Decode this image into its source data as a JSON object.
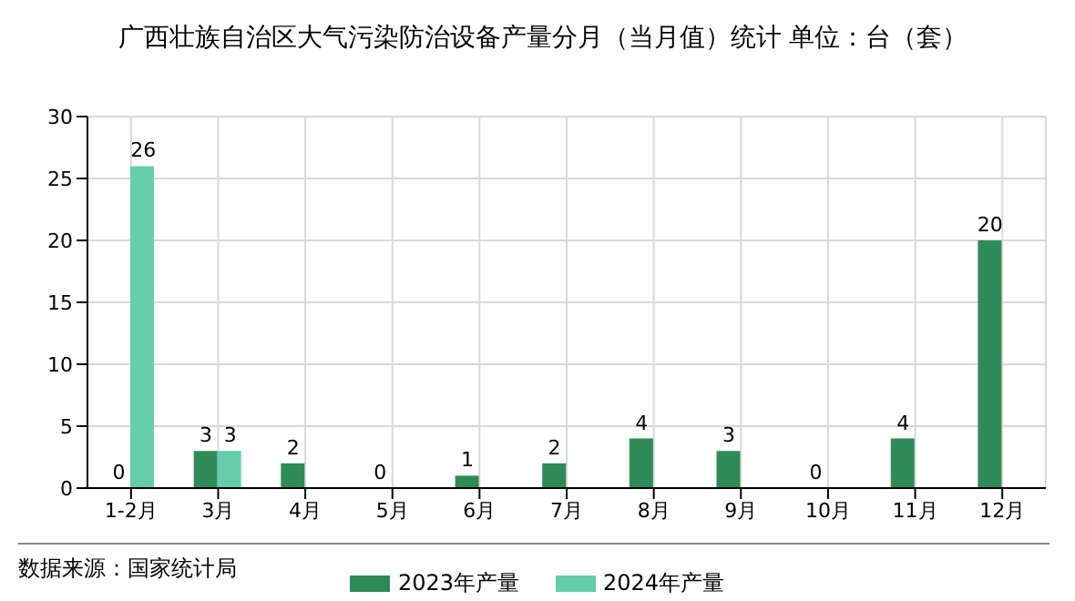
{
  "chart_data": {
    "type": "bar",
    "title": "广西壮族自治区大气污染防治设备产量分月（当月值）统计 单位：台（套）",
    "categories": [
      "1-2月",
      "3月",
      "4月",
      "5月",
      "6月",
      "7月",
      "8月",
      "9月",
      "10月",
      "11月",
      "12月"
    ],
    "series": [
      {
        "name": "2023年产量",
        "color": "#2e8b57",
        "values": [
          0,
          3,
          2,
          0,
          1,
          2,
          4,
          3,
          0,
          4,
          20
        ]
      },
      {
        "name": "2024年产量",
        "color": "#66cdaa",
        "values": [
          26,
          3,
          null,
          null,
          null,
          null,
          null,
          null,
          null,
          null,
          null
        ]
      }
    ],
    "ylim": [
      0,
      30
    ],
    "yticks": [
      0,
      5,
      10,
      15,
      20,
      25,
      30
    ],
    "grid": true,
    "legend": "bottom",
    "data_labels": true,
    "annotations": [
      "数据来源：国家统计局"
    ]
  }
}
